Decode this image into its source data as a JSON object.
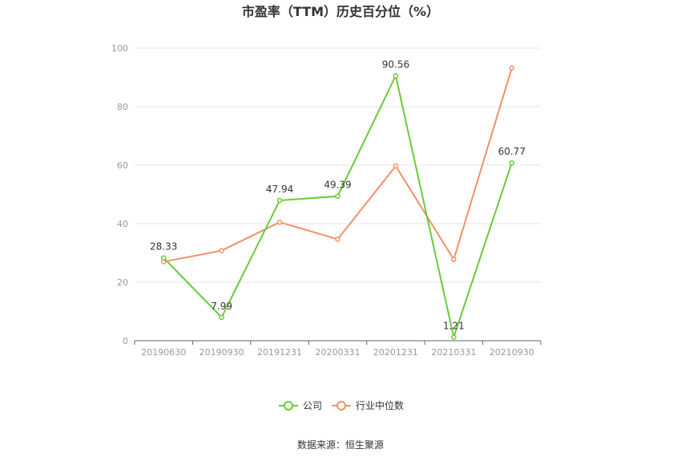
{
  "chart_data": {
    "type": "line",
    "title": "市盈率（TTM）历史百分位（%）",
    "categories": [
      "20190630",
      "20190930",
      "20191231",
      "20200331",
      "20201231",
      "20210331",
      "20210930"
    ],
    "ylim": [
      0,
      100
    ],
    "yticks": [
      0,
      20,
      40,
      60,
      80,
      100
    ],
    "grid": true,
    "legend_position": "bottom",
    "series": [
      {
        "name": "公司",
        "color": "#6acb35",
        "values": [
          28.33,
          7.99,
          47.94,
          49.39,
          90.56,
          1.21,
          60.77
        ],
        "labels": [
          "28.33",
          "7.99",
          "47.94",
          "49.39",
          "90.56",
          "1.21",
          "60.77"
        ]
      },
      {
        "name": "行业中位数",
        "color": "#f19166",
        "values": [
          27.0,
          30.8,
          40.5,
          34.7,
          59.7,
          27.8,
          93.2
        ]
      }
    ]
  },
  "source": "数据来源：恒生聚源"
}
